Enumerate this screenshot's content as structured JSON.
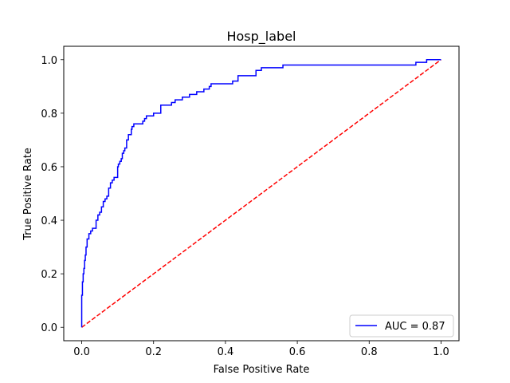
{
  "chart_data": {
    "type": "line",
    "title": "Hosp_label",
    "xlabel": "False Positive Rate",
    "ylabel": "True Positive Rate",
    "xlim": [
      -0.05,
      1.05
    ],
    "ylim": [
      -0.05,
      1.05
    ],
    "xticks": [
      0.0,
      0.2,
      0.4,
      0.6,
      0.8,
      1.0
    ],
    "yticks": [
      0.0,
      0.2,
      0.4,
      0.6,
      0.8,
      1.0
    ],
    "xtick_labels": [
      "0.0",
      "0.2",
      "0.4",
      "0.6",
      "0.8",
      "1.0"
    ],
    "ytick_labels": [
      "0.0",
      "0.2",
      "0.4",
      "0.6",
      "0.8",
      "1.0"
    ],
    "grid": false,
    "legend_position": "lower-right",
    "series": [
      {
        "name": "AUC = 0.87",
        "style": "solid",
        "color": "#0000ff",
        "x": [
          0,
          0,
          0.002,
          0.002,
          0.004,
          0.004,
          0.006,
          0.006,
          0.008,
          0.008,
          0.01,
          0.01,
          0.012,
          0.012,
          0.015,
          0.015,
          0.02,
          0.02,
          0.025,
          0.025,
          0.03,
          0.03,
          0.04,
          0.04,
          0.045,
          0.045,
          0.05,
          0.05,
          0.055,
          0.055,
          0.06,
          0.06,
          0.065,
          0.065,
          0.07,
          0.07,
          0.075,
          0.075,
          0.08,
          0.08,
          0.085,
          0.085,
          0.09,
          0.09,
          0.1,
          0.1,
          0.102,
          0.102,
          0.106,
          0.106,
          0.11,
          0.11,
          0.113,
          0.113,
          0.117,
          0.117,
          0.12,
          0.12,
          0.125,
          0.125,
          0.13,
          0.13,
          0.138,
          0.138,
          0.14,
          0.14,
          0.145,
          0.145,
          0.17,
          0.17,
          0.175,
          0.175,
          0.18,
          0.18,
          0.2,
          0.2,
          0.22,
          0.22,
          0.25,
          0.25,
          0.26,
          0.26,
          0.28,
          0.28,
          0.3,
          0.3,
          0.32,
          0.32,
          0.34,
          0.34,
          0.355,
          0.355,
          0.36,
          0.36,
          0.42,
          0.42,
          0.435,
          0.435,
          0.485,
          0.485,
          0.5,
          0.5,
          0.56,
          0.56,
          0.93,
          0.93,
          0.96,
          0.96,
          1.0
        ],
        "y": [
          0,
          0.12,
          0.12,
          0.17,
          0.17,
          0.2,
          0.2,
          0.22,
          0.22,
          0.25,
          0.25,
          0.27,
          0.27,
          0.3,
          0.3,
          0.33,
          0.33,
          0.35,
          0.35,
          0.36,
          0.36,
          0.37,
          0.37,
          0.4,
          0.4,
          0.42,
          0.42,
          0.43,
          0.43,
          0.45,
          0.45,
          0.47,
          0.47,
          0.48,
          0.48,
          0.49,
          0.49,
          0.52,
          0.52,
          0.54,
          0.54,
          0.55,
          0.55,
          0.56,
          0.56,
          0.6,
          0.6,
          0.61,
          0.61,
          0.62,
          0.62,
          0.63,
          0.63,
          0.65,
          0.65,
          0.66,
          0.66,
          0.67,
          0.67,
          0.7,
          0.7,
          0.72,
          0.72,
          0.74,
          0.74,
          0.75,
          0.75,
          0.76,
          0.76,
          0.77,
          0.77,
          0.78,
          0.78,
          0.79,
          0.79,
          0.8,
          0.8,
          0.83,
          0.83,
          0.84,
          0.84,
          0.85,
          0.85,
          0.86,
          0.86,
          0.87,
          0.87,
          0.88,
          0.88,
          0.89,
          0.89,
          0.9,
          0.9,
          0.91,
          0.91,
          0.92,
          0.92,
          0.94,
          0.94,
          0.96,
          0.96,
          0.97,
          0.97,
          0.98,
          0.98,
          0.99,
          0.99,
          1.0,
          1.0
        ]
      },
      {
        "style": "dashed",
        "color": "#ff0000",
        "x": [
          0,
          1
        ],
        "y": [
          0,
          1
        ]
      }
    ]
  }
}
